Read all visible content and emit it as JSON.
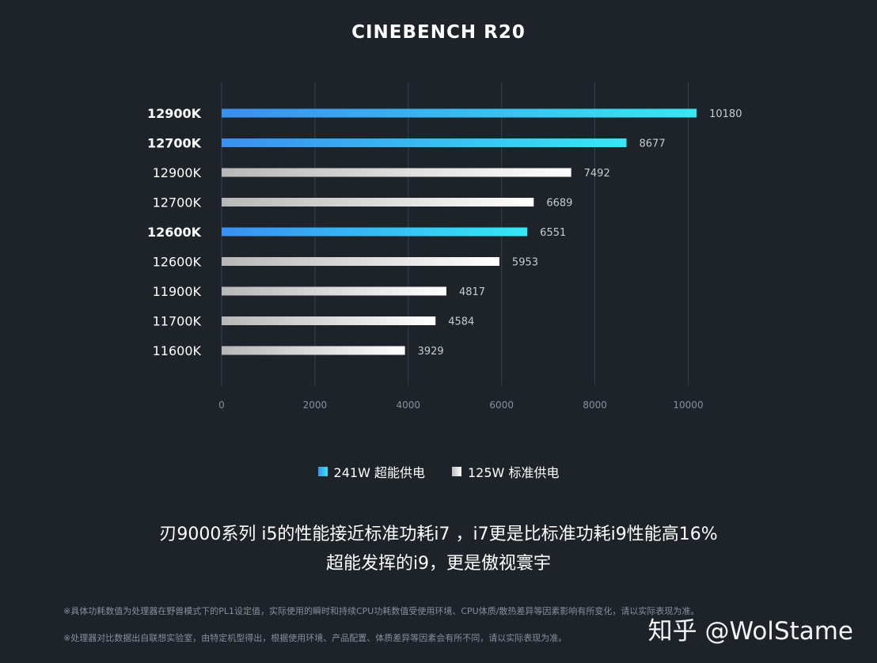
{
  "chart_data": {
    "type": "bar",
    "orientation": "horizontal",
    "title": "CINEBENCH R20",
    "categories": [
      "12900K",
      "12700K",
      "12900K",
      "12700K",
      "12600K",
      "12600K",
      "11900K",
      "11700K",
      "11600K"
    ],
    "values": [
      10180,
      8677,
      7492,
      6689,
      6551,
      5953,
      4817,
      4584,
      3929
    ],
    "bar_series": [
      "241W 超能供电",
      "241W 超能供电",
      "125W 标准供电",
      "125W 标准供电",
      "241W 超能供电",
      "125W 标准供电",
      "125W 标准供电",
      "125W 标准供电",
      "125W 标准供电"
    ],
    "series": [
      {
        "name": "241W 超能供电",
        "color": "#36e7f4"
      },
      {
        "name": "125W 标准供电",
        "color": "#e0e0e0"
      }
    ],
    "x_ticks": [
      0,
      2000,
      4000,
      6000,
      8000,
      10000
    ],
    "xlim": [
      0,
      10400
    ],
    "xlabel": "",
    "ylabel": "",
    "grid": true,
    "legend_position": "bottom-center"
  },
  "captions": {
    "line1": "刃9000系列 i5的性能接近标准功耗i7 ，i7更是比标准功耗i9性能高16%",
    "line2": "超能发挥的i9，更是傲视寰宇"
  },
  "footnotes": {
    "line1": "※具体功耗数值为处理器在野兽模式下的PL1设定值，实际使用的瞬时和持续CPU功耗数值受使用环境、CPU体质/散热差异等因素影响有所变化，请以实际表现为准。",
    "line2": "※处理器对比数据出自联想实验室，由特定机型得出，根据使用环境、产品配置、体质差异等因素会有所不同，请以实际表现为准。"
  },
  "watermark": "知乎 @WolStame"
}
